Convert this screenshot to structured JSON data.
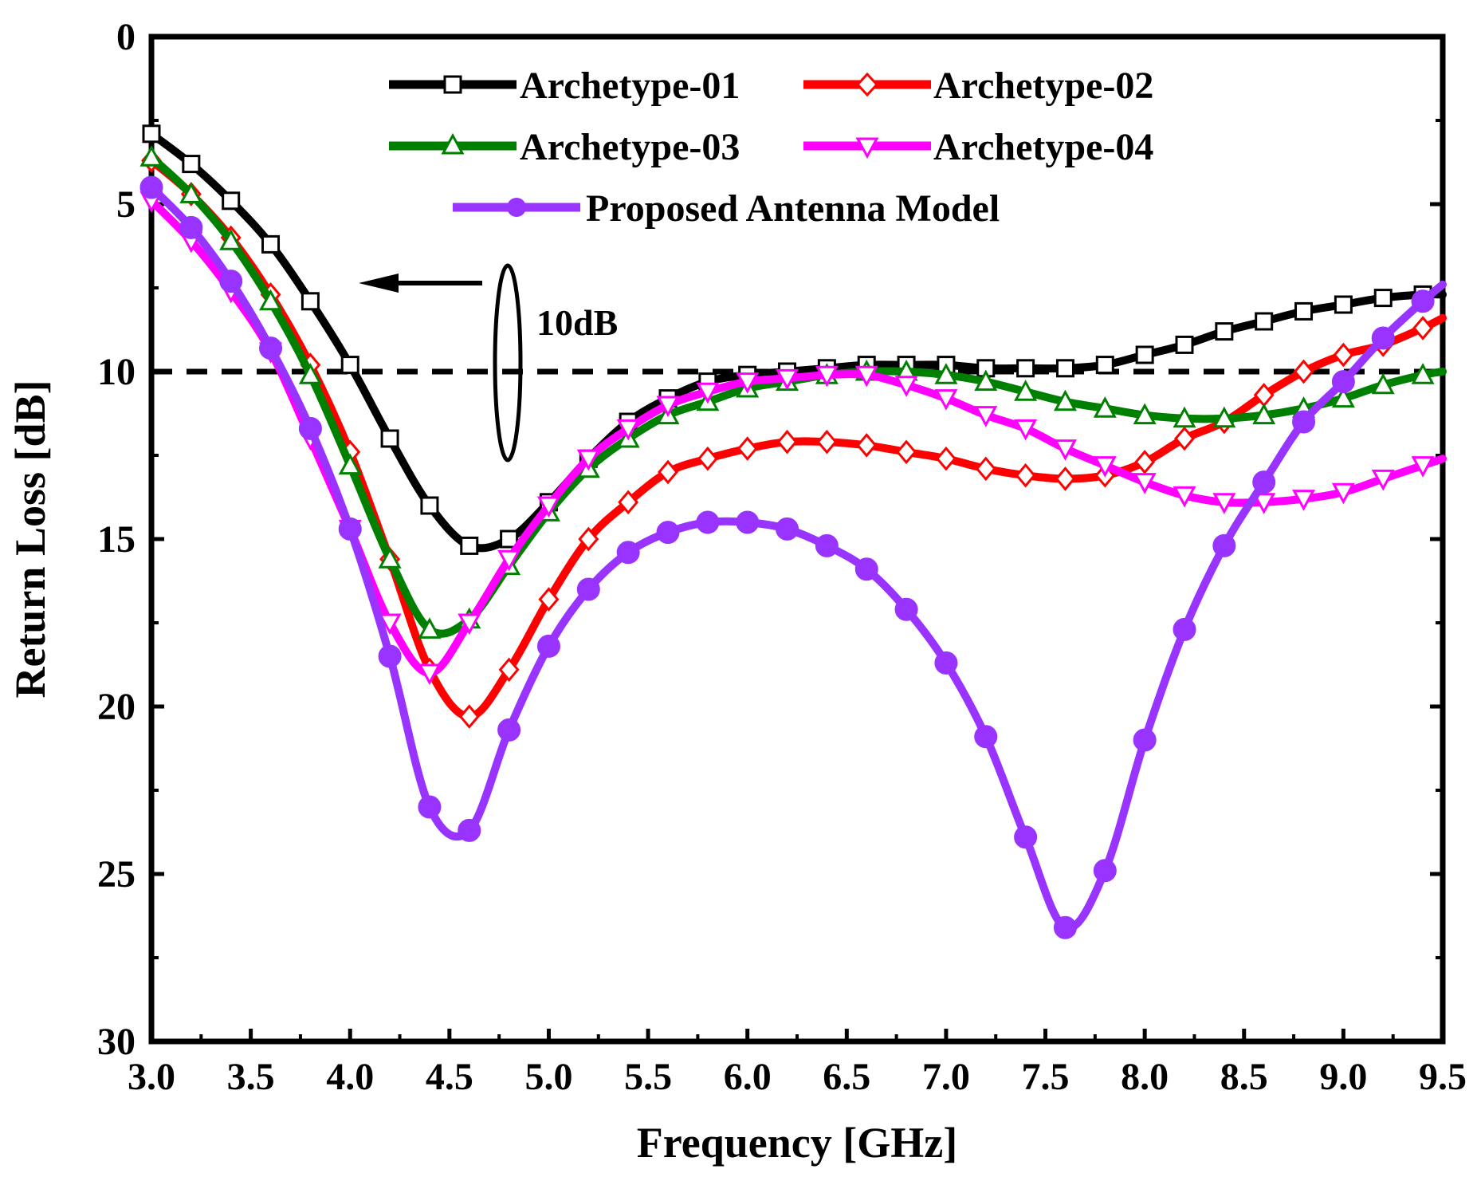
{
  "chart_data": {
    "type": "line",
    "title": "",
    "xlabel": "Frequency [GHz]",
    "ylabel": "Return Loss [dB]",
    "xlim": [
      3.0,
      9.5
    ],
    "ylim": [
      0,
      30
    ],
    "y_inverted": true,
    "grid": false,
    "legend_position": "top-center",
    "x_ticks": [
      "3.0",
      "3.5",
      "4.0",
      "4.5",
      "5.0",
      "5.5",
      "6.0",
      "6.5",
      "7.0",
      "7.5",
      "8.0",
      "8.5",
      "9.0",
      "9.5"
    ],
    "y_ticks": [
      "0",
      "5",
      "10",
      "15",
      "20",
      "25",
      "30"
    ],
    "reference_line": {
      "value": 10,
      "style": "dashed"
    },
    "annotation": {
      "text": "10dB",
      "marker": "ellipse-with-arrow"
    },
    "x": [
      3.0,
      3.2,
      3.4,
      3.6,
      3.8,
      4.0,
      4.2,
      4.4,
      4.6,
      4.8,
      5.0,
      5.2,
      5.4,
      5.6,
      5.8,
      6.0,
      6.2,
      6.4,
      6.6,
      6.8,
      7.0,
      7.2,
      7.4,
      7.6,
      7.8,
      8.0,
      8.2,
      8.4,
      8.6,
      8.8,
      9.0,
      9.2,
      9.4,
      9.5
    ],
    "series": [
      {
        "name": "Archetype-01",
        "color": "#000000",
        "marker": "square",
        "values": [
          2.9,
          3.8,
          4.9,
          6.2,
          7.9,
          9.8,
          12.0,
          14.0,
          15.2,
          15.0,
          13.9,
          12.6,
          11.5,
          10.8,
          10.3,
          10.1,
          10.0,
          9.9,
          9.8,
          9.8,
          9.8,
          9.9,
          9.9,
          9.9,
          9.8,
          9.5,
          9.2,
          8.8,
          8.5,
          8.2,
          8.0,
          7.8,
          7.7,
          7.7
        ]
      },
      {
        "name": "Archetype-02",
        "color": "#ff0000",
        "marker": "diamond",
        "values": [
          3.7,
          4.7,
          6.0,
          7.7,
          9.8,
          12.4,
          15.6,
          18.9,
          20.3,
          18.9,
          16.8,
          15.0,
          13.9,
          13.0,
          12.6,
          12.3,
          12.1,
          12.1,
          12.2,
          12.4,
          12.6,
          12.9,
          13.1,
          13.2,
          13.1,
          12.7,
          12.0,
          11.5,
          10.7,
          10.0,
          9.5,
          9.2,
          8.7,
          8.4
        ]
      },
      {
        "name": "Archetype-03",
        "color": "#008000",
        "marker": "triangle-up",
        "values": [
          3.6,
          4.7,
          6.1,
          7.9,
          10.1,
          12.8,
          15.6,
          17.7,
          17.4,
          15.8,
          14.2,
          12.9,
          12.0,
          11.3,
          10.9,
          10.5,
          10.3,
          10.1,
          10.0,
          10.0,
          10.1,
          10.3,
          10.6,
          10.9,
          11.1,
          11.3,
          11.4,
          11.4,
          11.3,
          11.1,
          10.8,
          10.4,
          10.1,
          10.0
        ]
      },
      {
        "name": "Archetype-04",
        "color": "#ff00ff",
        "marker": "triangle-down",
        "values": [
          4.9,
          6.1,
          7.6,
          9.4,
          12.0,
          14.7,
          17.5,
          19.0,
          17.5,
          15.6,
          14.0,
          12.6,
          11.7,
          11.0,
          10.6,
          10.3,
          10.2,
          10.1,
          10.1,
          10.4,
          10.8,
          11.3,
          11.7,
          12.3,
          12.8,
          13.3,
          13.7,
          13.9,
          13.9,
          13.8,
          13.6,
          13.2,
          12.8,
          12.6
        ]
      },
      {
        "name": "Proposed Antenna Model",
        "color": "#9933ff",
        "marker": "circle",
        "values": [
          4.5,
          5.7,
          7.3,
          9.3,
          11.7,
          14.7,
          18.5,
          23.0,
          23.7,
          20.7,
          18.2,
          16.5,
          15.4,
          14.8,
          14.5,
          14.5,
          14.7,
          15.2,
          15.9,
          17.1,
          18.7,
          20.9,
          23.9,
          26.6,
          24.9,
          21.0,
          17.7,
          15.2,
          13.3,
          11.5,
          10.3,
          9.0,
          7.9,
          7.4
        ]
      }
    ]
  }
}
